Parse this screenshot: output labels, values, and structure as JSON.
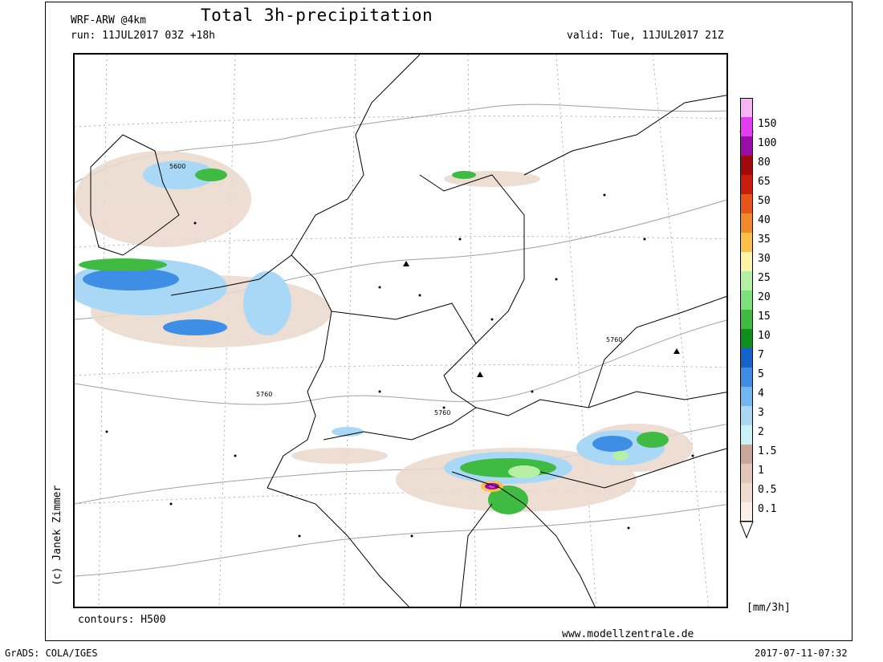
{
  "header": {
    "model": "WRF-ARW @4km",
    "title": "Total 3h-precipitation",
    "run": "run: 11JUL2017 03Z +18h",
    "valid": "valid: Tue, 11JUL2017 21Z"
  },
  "footer": {
    "contours": "contours: H500",
    "website": "www.modellzentrale.de",
    "grads": "GrADS: COLA/IGES",
    "timestamp": "2017-07-11-07:32",
    "credit": "(c) Janek Zimmer"
  },
  "legend": {
    "unit": "[mm/3h]",
    "levels": [
      "0.1",
      "0.5",
      "1",
      "1.5",
      "2",
      "3",
      "4",
      "5",
      "7",
      "10",
      "15",
      "20",
      "25",
      "30",
      "35",
      "40",
      "50",
      "65",
      "80",
      "100",
      "150"
    ],
    "colors": [
      "#fbf0e8",
      "#efdcd0",
      "#e2c6b8",
      "#c9a79a",
      "#c9f2f8",
      "#a8d8f6",
      "#72b6ef",
      "#3f8ee6",
      "#1562c9",
      "#0f8f1e",
      "#3fba42",
      "#7de07a",
      "#b6f0a6",
      "#fdf4a8",
      "#fbc048",
      "#f08a2a",
      "#e65519",
      "#c81d0e",
      "#a00a0a",
      "#9a0ca8",
      "#e23df0",
      "#f7b4f4"
    ]
  },
  "map_labels": {
    "contour_5600": "5600",
    "contour_5760_a": "5760",
    "contour_5760_b": "5760",
    "contour_5760_c": "5760"
  }
}
